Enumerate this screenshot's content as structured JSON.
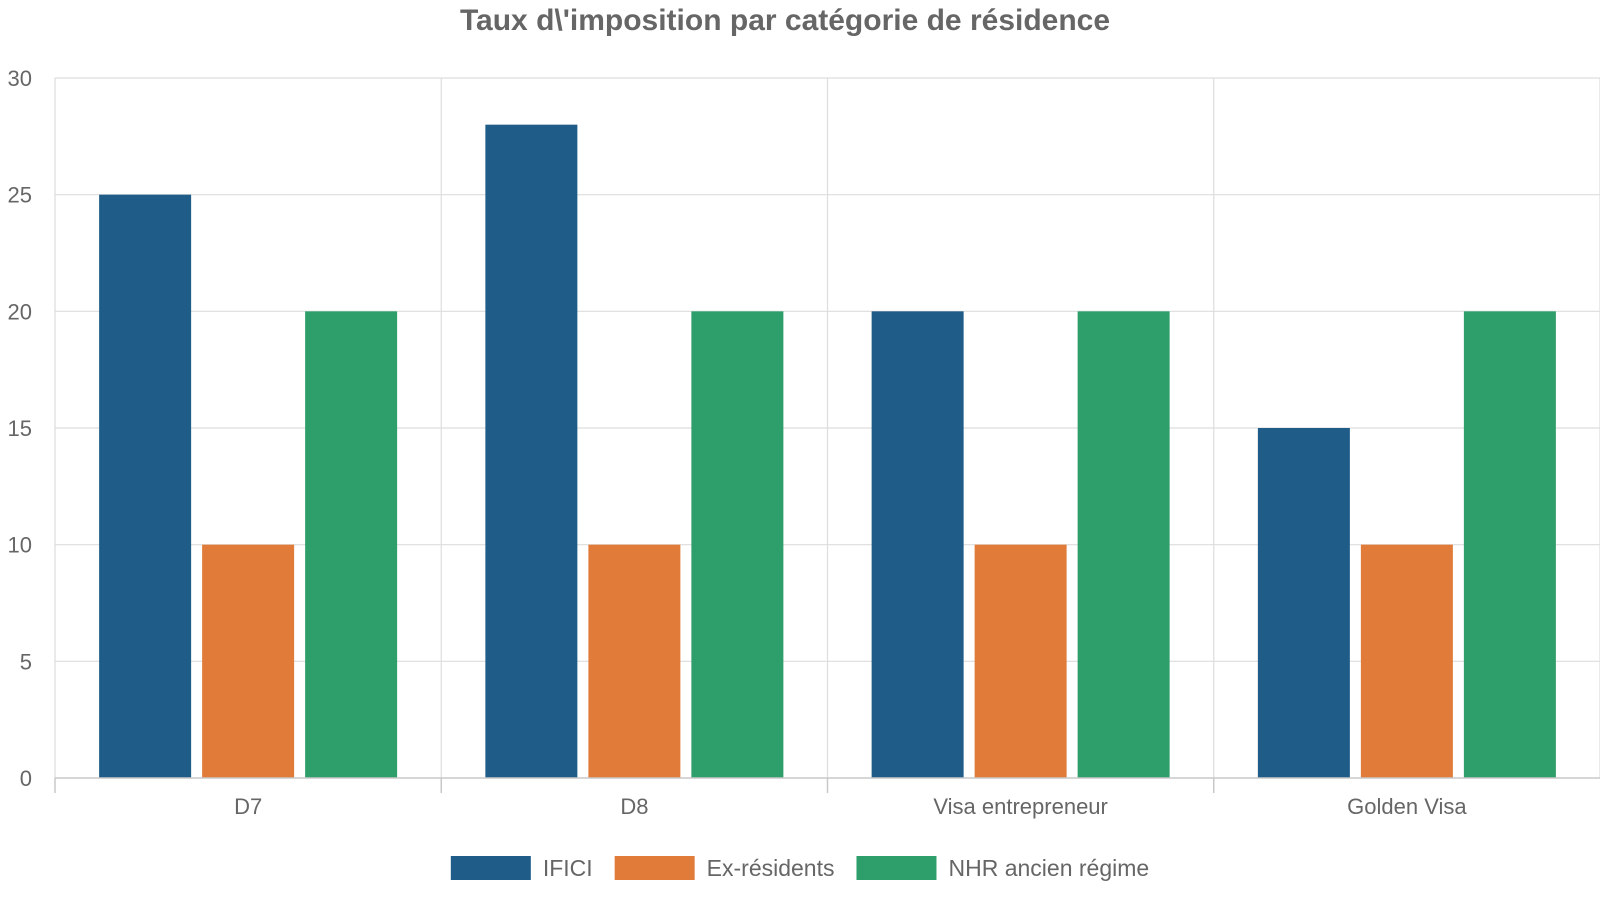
{
  "chart_data": {
    "type": "bar",
    "title": "Taux d\\'imposition par catégorie de résidence",
    "xlabel": "",
    "ylabel": "",
    "categories": [
      "D7",
      "D8",
      "Visa entrepreneur",
      "Golden Visa"
    ],
    "series": [
      {
        "name": "IFICI",
        "values": [
          25,
          28,
          20,
          15
        ],
        "color": "#1f5c87"
      },
      {
        "name": "Ex-résidents",
        "values": [
          10,
          10,
          10,
          10
        ],
        "color": "#e07b3a"
      },
      {
        "name": "NHR ancien régime",
        "values": [
          20,
          20,
          20,
          20
        ],
        "color": "#2e9e6b"
      }
    ],
    "ylim": [
      0,
      30
    ],
    "yticks": [
      0,
      5,
      10,
      15,
      20,
      25,
      30
    ],
    "grid": true,
    "legend": "bottom"
  }
}
